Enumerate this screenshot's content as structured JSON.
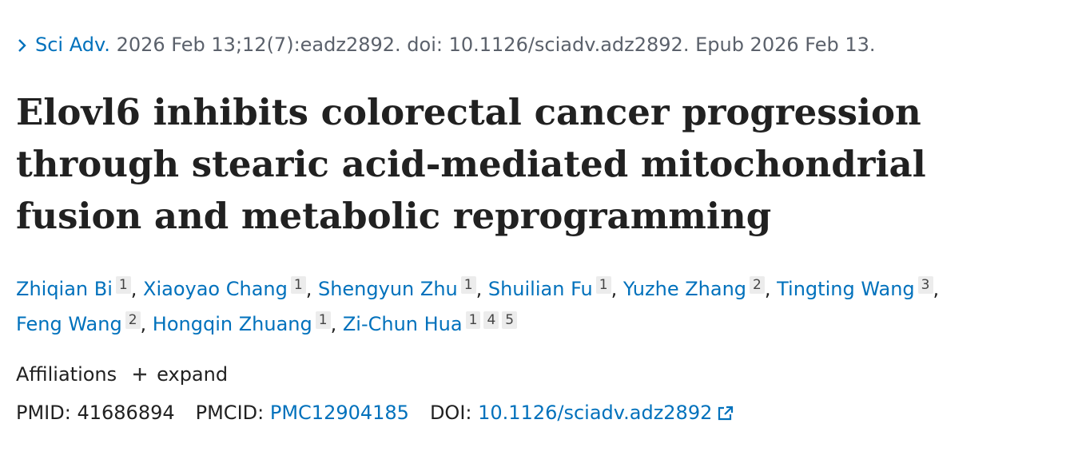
{
  "citation": {
    "journal": "Sci Adv.",
    "details": "2026 Feb 13;12(7):eadz2892. doi: 10.1126/sciadv.adz2892. Epub 2026 Feb 13."
  },
  "title": "Elovl6 inhibits colorectal cancer progression through stearic acid-mediated mitochondrial fusion and metabolic reprogramming",
  "author_separator": ",",
  "authors": [
    {
      "name": "Zhiqian Bi",
      "affiliations": [
        "1"
      ]
    },
    {
      "name": "Xiaoyao Chang",
      "affiliations": [
        "1"
      ]
    },
    {
      "name": "Shengyun Zhu",
      "affiliations": [
        "1"
      ]
    },
    {
      "name": "Shuilian Fu",
      "affiliations": [
        "1"
      ]
    },
    {
      "name": "Yuzhe Zhang",
      "affiliations": [
        "2"
      ]
    },
    {
      "name": "Tingting Wang",
      "affiliations": [
        "3"
      ]
    },
    {
      "name": "Feng Wang",
      "affiliations": [
        "2"
      ]
    },
    {
      "name": "Hongqin Zhuang",
      "affiliations": [
        "1"
      ]
    },
    {
      "name": "Zi-Chun Hua",
      "affiliations": [
        "1",
        "4",
        "5"
      ]
    }
  ],
  "affiliations": {
    "label": "Affiliations",
    "toggle": "expand"
  },
  "identifiers": [
    {
      "label": "PMID:",
      "value": "41686894",
      "link": false
    },
    {
      "label": "PMCID:",
      "value": "PMC12904185",
      "link": true
    },
    {
      "label": "DOI:",
      "value": "10.1126/sciadv.adz2892",
      "link": true,
      "external": true
    }
  ]
}
